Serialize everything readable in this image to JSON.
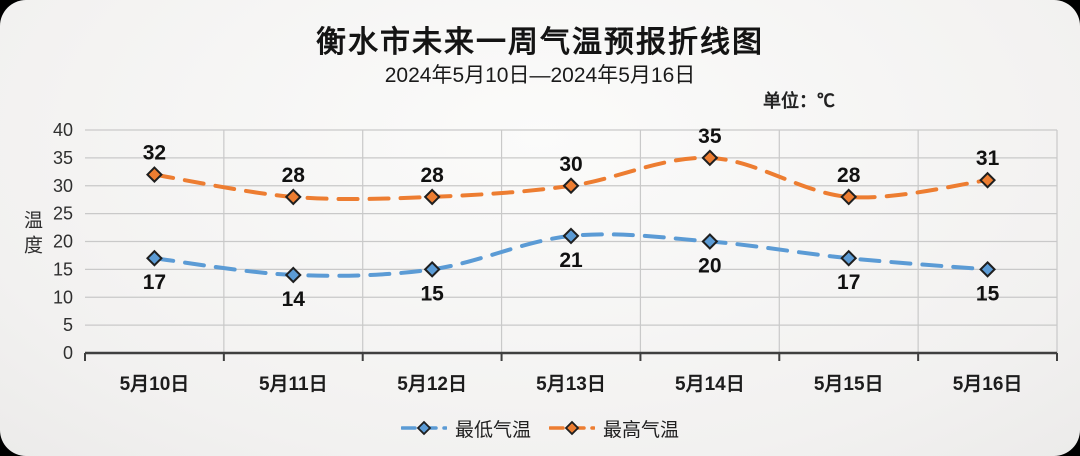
{
  "header": {
    "title": "衡水市未来一周气温预报折线图",
    "subtitle": "2024年5月10日—2024年5月16日",
    "unit_label": "单位：℃"
  },
  "chart_data": {
    "type": "line",
    "title": "衡水市未来一周气温预报折线图",
    "subtitle": "2024年5月10日—2024年5月16日",
    "unit": "℃",
    "categories": [
      "5月10日",
      "5月11日",
      "5月12日",
      "5月13日",
      "5月14日",
      "5月15日",
      "5月16日"
    ],
    "series": [
      {
        "key": "min-temp",
        "name": "最低气温",
        "values": [
          17,
          14,
          15,
          21,
          20,
          17,
          15
        ],
        "color": "#5B9BD5",
        "label_position": "below"
      },
      {
        "key": "max-temp",
        "name": "最高气温",
        "values": [
          32,
          28,
          28,
          30,
          35,
          28,
          31
        ],
        "color": "#ED7D31",
        "label_position": "above"
      }
    ],
    "xlabel": "",
    "ylabel": "温度",
    "ylim": [
      0,
      40
    ],
    "yticks": [
      0,
      5,
      10,
      15,
      20,
      25,
      30,
      35,
      40
    ],
    "grid": true,
    "line_style": "dashed",
    "marker": "diamond",
    "marker_outline": "#1f1f1f",
    "grid_color": "#c9c9c9",
    "axis_color": "#3f3f3f",
    "tick_label_color": "#2f2f2f",
    "data_label_color": "#111111",
    "legend_position": "bottom",
    "legend": [
      "最低气温",
      "最高气温"
    ]
  }
}
